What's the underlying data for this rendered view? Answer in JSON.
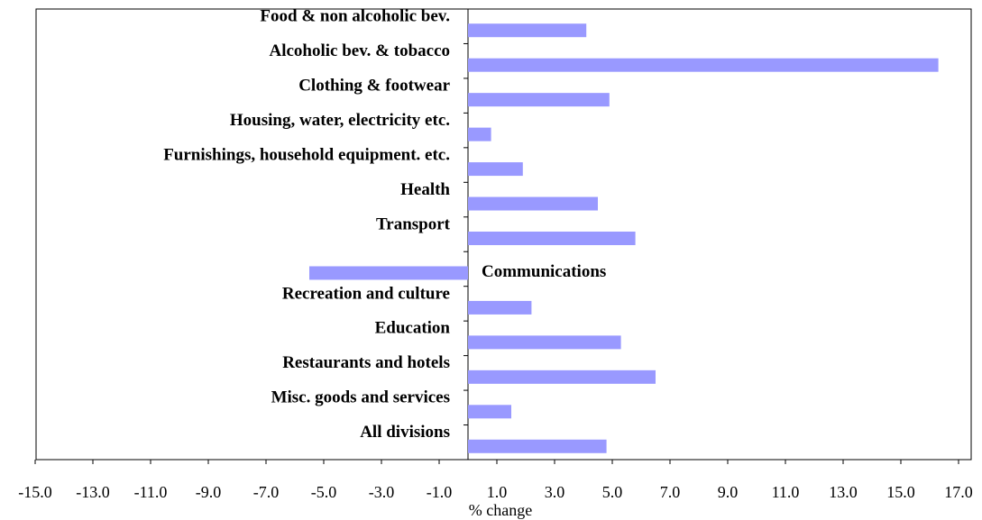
{
  "chart_data": {
    "type": "barh",
    "x_label": "% change",
    "categories": [
      "Food & non alcoholic  bev.",
      "Alcoholic bev. & tobacco",
      "Clothing & footwear",
      "Housing, water, electricity etc.",
      "Furnishings, household equipment. etc.",
      "Health",
      "Transport",
      "Communications",
      "Recreation and culture",
      "Education",
      "Restaurants and hotels",
      "Misc. goods and services",
      "All divisions"
    ],
    "values": [
      4.1,
      16.3,
      4.9,
      0.8,
      1.9,
      4.5,
      5.8,
      -5.5,
      2.2,
      5.3,
      6.5,
      1.5,
      4.8
    ],
    "color": "#9999ff",
    "xlim": [
      -15,
      17
    ],
    "xticks": [
      {
        "value": -15,
        "label": "-15.0"
      },
      {
        "value": -13,
        "label": "-13.0"
      },
      {
        "value": -11,
        "label": "-11.0"
      },
      {
        "value": -9,
        "label": "-9.0"
      },
      {
        "value": -7,
        "label": "-7.0"
      },
      {
        "value": -5,
        "label": "-5.0"
      },
      {
        "value": -3,
        "label": "-3.0"
      },
      {
        "value": -1,
        "label": "-1.0"
      },
      {
        "value": 1,
        "label": "1.0"
      },
      {
        "value": 3,
        "label": "3.0"
      },
      {
        "value": 5,
        "label": "5.0"
      },
      {
        "value": 7,
        "label": "7.0"
      },
      {
        "value": 9,
        "label": "9.0"
      },
      {
        "value": 11,
        "label": "11.0"
      },
      {
        "value": 13,
        "label": "13.0"
      },
      {
        "value": 15,
        "label": "15.0"
      },
      {
        "value": 17,
        "label": "17.0"
      }
    ],
    "grid": false
  }
}
